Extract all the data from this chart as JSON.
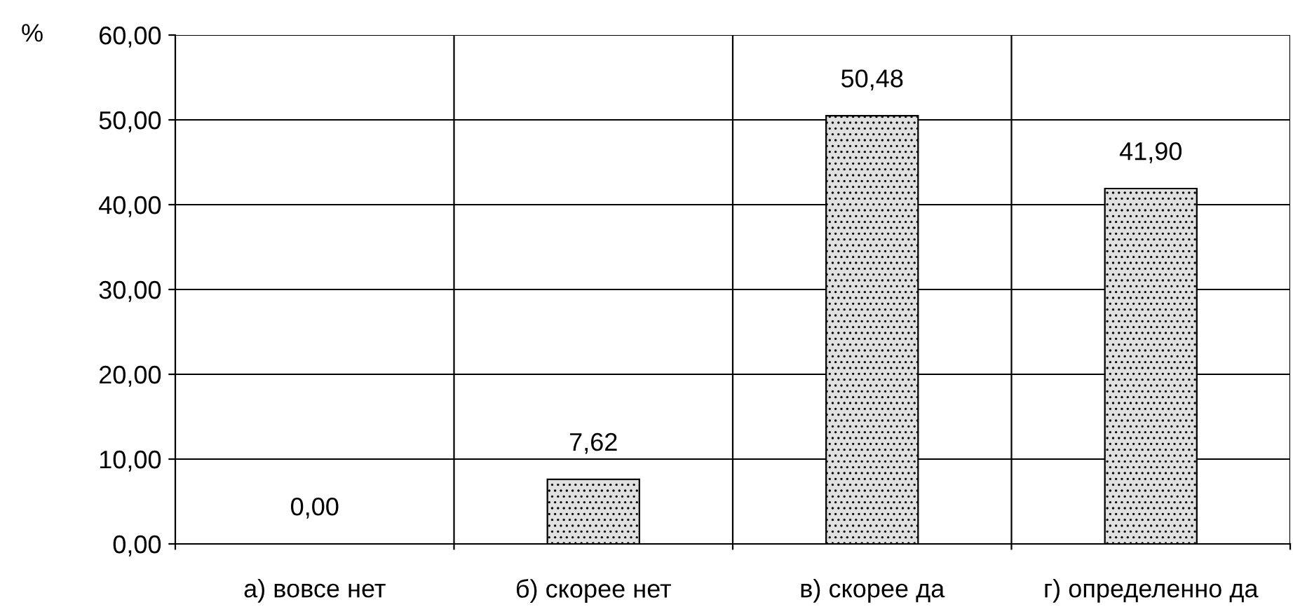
{
  "chart_data": {
    "type": "bar",
    "ylabel": "%",
    "categories": [
      "а) вовсе нет",
      "б) скорее нет",
      "в) скорее да",
      "г) определенно да"
    ],
    "values": [
      0.0,
      7.62,
      50.48,
      41.9
    ],
    "value_labels": [
      "0,00",
      "7,62",
      "50,48",
      "41,90"
    ],
    "color": "#e0e0e0",
    "ylim": [
      0,
      60
    ],
    "yticks": [
      {
        "value": 0,
        "label": "0,00"
      },
      {
        "value": 10,
        "label": "10,00"
      },
      {
        "value": 20,
        "label": "20,00"
      },
      {
        "value": 30,
        "label": "30,00"
      },
      {
        "value": 40,
        "label": "40,00"
      },
      {
        "value": 50,
        "label": "50,00"
      },
      {
        "value": 60,
        "label": "60,00"
      }
    ],
    "grid": true
  }
}
